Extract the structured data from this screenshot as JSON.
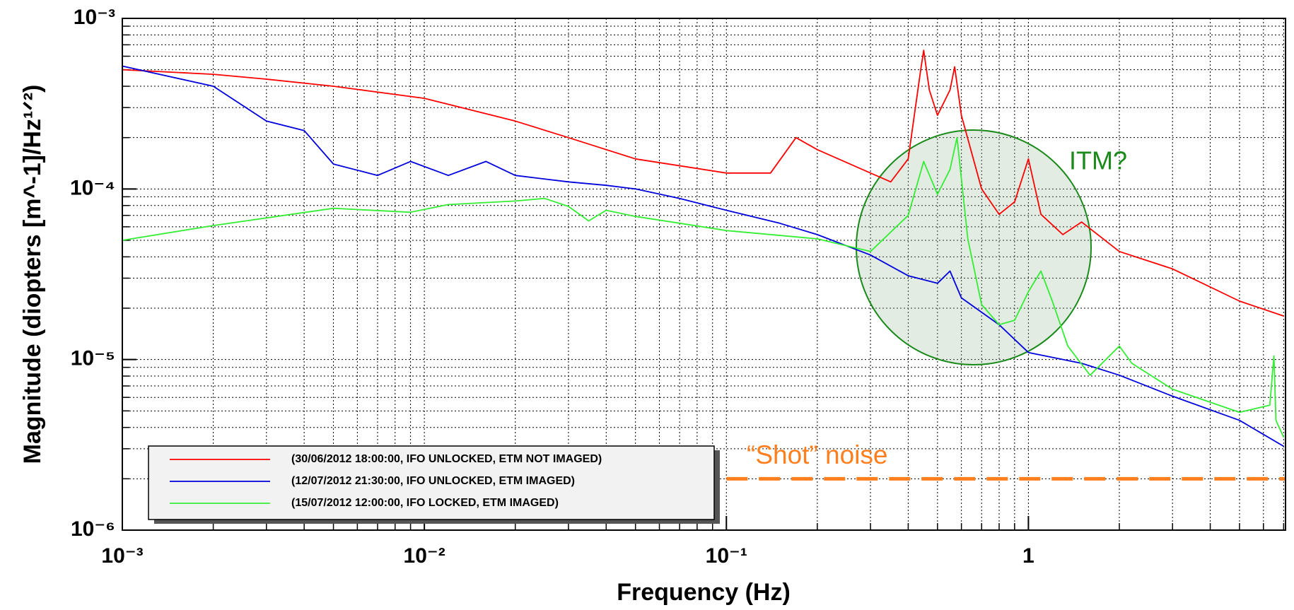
{
  "chart_data": {
    "type": "line",
    "xlabel": "Frequency (Hz)",
    "ylabel": "Magnitude (diopters [m^-1]/Hz¹ᐟ²)",
    "xscale": "log",
    "yscale": "log",
    "grid": true,
    "legend": "lower left",
    "xlim": [
      0.001,
      7.1
    ],
    "ylim": [
      1e-06,
      0.001
    ],
    "xticks": [
      {
        "value": 0.001,
        "label": "10⁻³"
      },
      {
        "value": 0.01,
        "label": "10⁻²"
      },
      {
        "value": 0.1,
        "label": "10⁻¹"
      },
      1
    ],
    "yticks": [
      {
        "value": 1e-06,
        "label": "10⁻⁶"
      },
      {
        "value": 1e-05,
        "label": "10⁻⁵"
      },
      {
        "value": 0.0001,
        "label": "10⁻⁴"
      },
      {
        "value": 0.001,
        "label": "10⁻³"
      }
    ],
    "series": [
      {
        "name": "(30/06/2012 18:00:00, IFO UNLOCKED, ETM NOT IMAGED)",
        "color": "#ff0000",
        "x": [
          0.001,
          0.002,
          0.003,
          0.005,
          0.01,
          0.02,
          0.03,
          0.05,
          0.1,
          0.14,
          0.17,
          0.2,
          0.3,
          0.35,
          0.4,
          0.44,
          0.45,
          0.47,
          0.5,
          0.55,
          0.57,
          0.6,
          0.7,
          0.8,
          0.9,
          1.0,
          1.1,
          1.3,
          1.5,
          2,
          3,
          5,
          7
        ],
        "values": [
          0.0005,
          0.00047,
          0.00044,
          0.0004,
          0.00034,
          0.00025,
          0.0002,
          0.00015,
          0.000124,
          0.000124,
          0.0002,
          0.00017,
          0.000124,
          0.00011,
          0.00015,
          0.0005,
          0.00065,
          0.00038,
          0.00027,
          0.00038,
          0.00052,
          0.00027,
          0.0001,
          7.1e-05,
          8.4e-05,
          0.00015,
          7.1e-05,
          5.4e-05,
          6.4e-05,
          4.3e-05,
          3.4e-05,
          2.2e-05,
          1.8e-05
        ]
      },
      {
        "name": "(12/07/2012 21:30:00, IFO UNLOCKED, ETM IMAGED)",
        "color": "#0000dd",
        "x": [
          0.001,
          0.002,
          0.003,
          0.004,
          0.005,
          0.007,
          0.009,
          0.012,
          0.016,
          0.02,
          0.03,
          0.04,
          0.05,
          0.07,
          0.1,
          0.15,
          0.2,
          0.3,
          0.4,
          0.5,
          0.55,
          0.6,
          0.8,
          1,
          1.5,
          2,
          3,
          5,
          7
        ],
        "values": [
          0.000525,
          0.0004,
          0.00025,
          0.00022,
          0.00014,
          0.00012,
          0.000145,
          0.00012,
          0.000145,
          0.00012,
          0.00011,
          0.000105,
          0.0001,
          8.8e-05,
          7.5e-05,
          6.3e-05,
          5.4e-05,
          4.1e-05,
          3.1e-05,
          2.8e-05,
          3.3e-05,
          2.3e-05,
          1.6e-05,
          1.1e-05,
          9.5e-06,
          8.1e-06,
          6.1e-06,
          4.4e-06,
          3.1e-06
        ]
      },
      {
        "name": "(15/07/2012 12:00:00, IFO LOCKED, ETM IMAGED)",
        "color": "#33ee33",
        "x": [
          0.001,
          0.002,
          0.005,
          0.009,
          0.012,
          0.02,
          0.025,
          0.03,
          0.035,
          0.04,
          0.05,
          0.07,
          0.1,
          0.2,
          0.3,
          0.4,
          0.45,
          0.5,
          0.55,
          0.58,
          0.63,
          0.7,
          0.8,
          0.9,
          1.0,
          1.1,
          1.2,
          1.35,
          1.6,
          2,
          2.2,
          3,
          5,
          6.3,
          6.5,
          6.6,
          7
        ],
        "values": [
          5e-05,
          6.1e-05,
          7.7e-05,
          7.3e-05,
          8.1e-05,
          8.5e-05,
          8.8e-05,
          7.9e-05,
          6.5e-05,
          7.5e-05,
          6.9e-05,
          6.3e-05,
          5.7e-05,
          5.1e-05,
          4.3e-05,
          7e-05,
          0.000145,
          9.3e-05,
          0.00013,
          0.0002,
          5.1e-05,
          2.1e-05,
          1.6e-05,
          1.7e-05,
          2.5e-05,
          3.3e-05,
          2.2e-05,
          1.2e-05,
          8.1e-06,
          1.2e-05,
          9.5e-06,
          6.7e-06,
          4.9e-06,
          5.4e-06,
          1.05e-05,
          4.4e-06,
          3.5e-06
        ]
      }
    ],
    "annotations": {
      "itm": "ITM?",
      "shot_noise": {
        "label": "“Shot” noise",
        "value": 2e-06,
        "color": "#ff7f1e",
        "x": [
          0.1,
          7.1
        ]
      }
    }
  }
}
